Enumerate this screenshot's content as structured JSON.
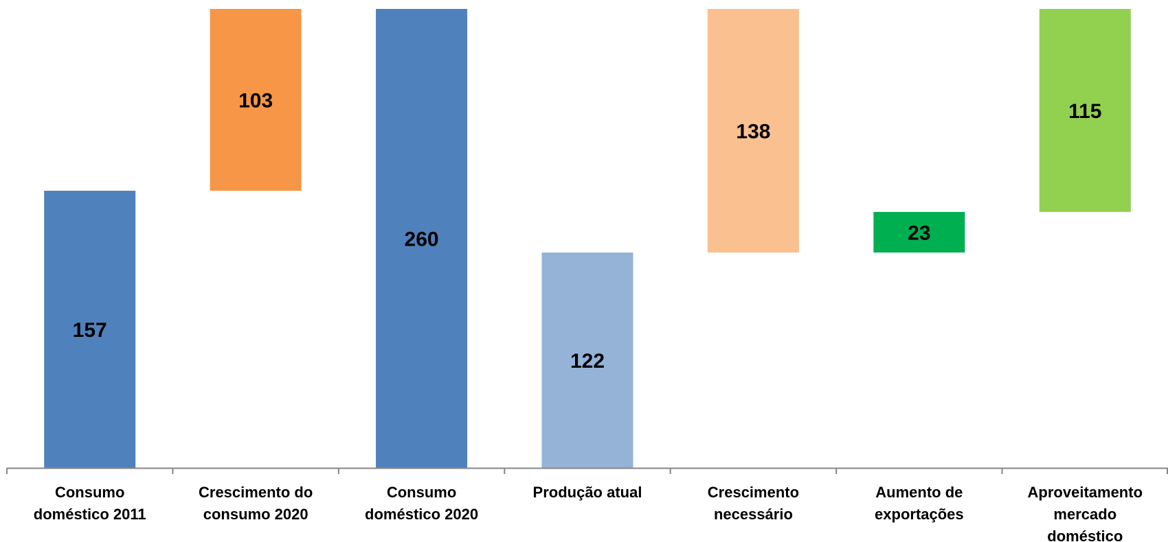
{
  "chart_data": {
    "type": "bar",
    "subtype": "waterfall",
    "title": "",
    "xlabel": "",
    "ylabel": "",
    "ylim": [
      0,
      260
    ],
    "grid": false,
    "legend": "none",
    "categories": [
      [
        "Consumo",
        "doméstico 2011"
      ],
      [
        "Crescimento do",
        "consumo 2020"
      ],
      [
        "Consumo",
        "doméstico 2020"
      ],
      [
        "Produção atual"
      ],
      [
        "Crescimento",
        "necessário"
      ],
      [
        "Aumento de",
        "exportações"
      ],
      [
        "Aproveitamento",
        "mercado",
        "doméstico"
      ]
    ],
    "bars": [
      {
        "base": 0,
        "value": 157,
        "label": "157",
        "color": "#4F81BD"
      },
      {
        "base": 157,
        "value": 103,
        "label": "103",
        "color": "#F79646"
      },
      {
        "base": 0,
        "value": 260,
        "label": "260",
        "color": "#4F81BD"
      },
      {
        "base": 0,
        "value": 122,
        "label": "122",
        "color": "#95B3D7"
      },
      {
        "base": 122,
        "value": 138,
        "label": "138",
        "color": "#FAC090"
      },
      {
        "base": 122,
        "value": 23,
        "label": "23",
        "color": "#00B050"
      },
      {
        "base": 145,
        "value": 115,
        "label": "115",
        "color": "#92D050"
      }
    ],
    "axis_color": "#868686"
  }
}
